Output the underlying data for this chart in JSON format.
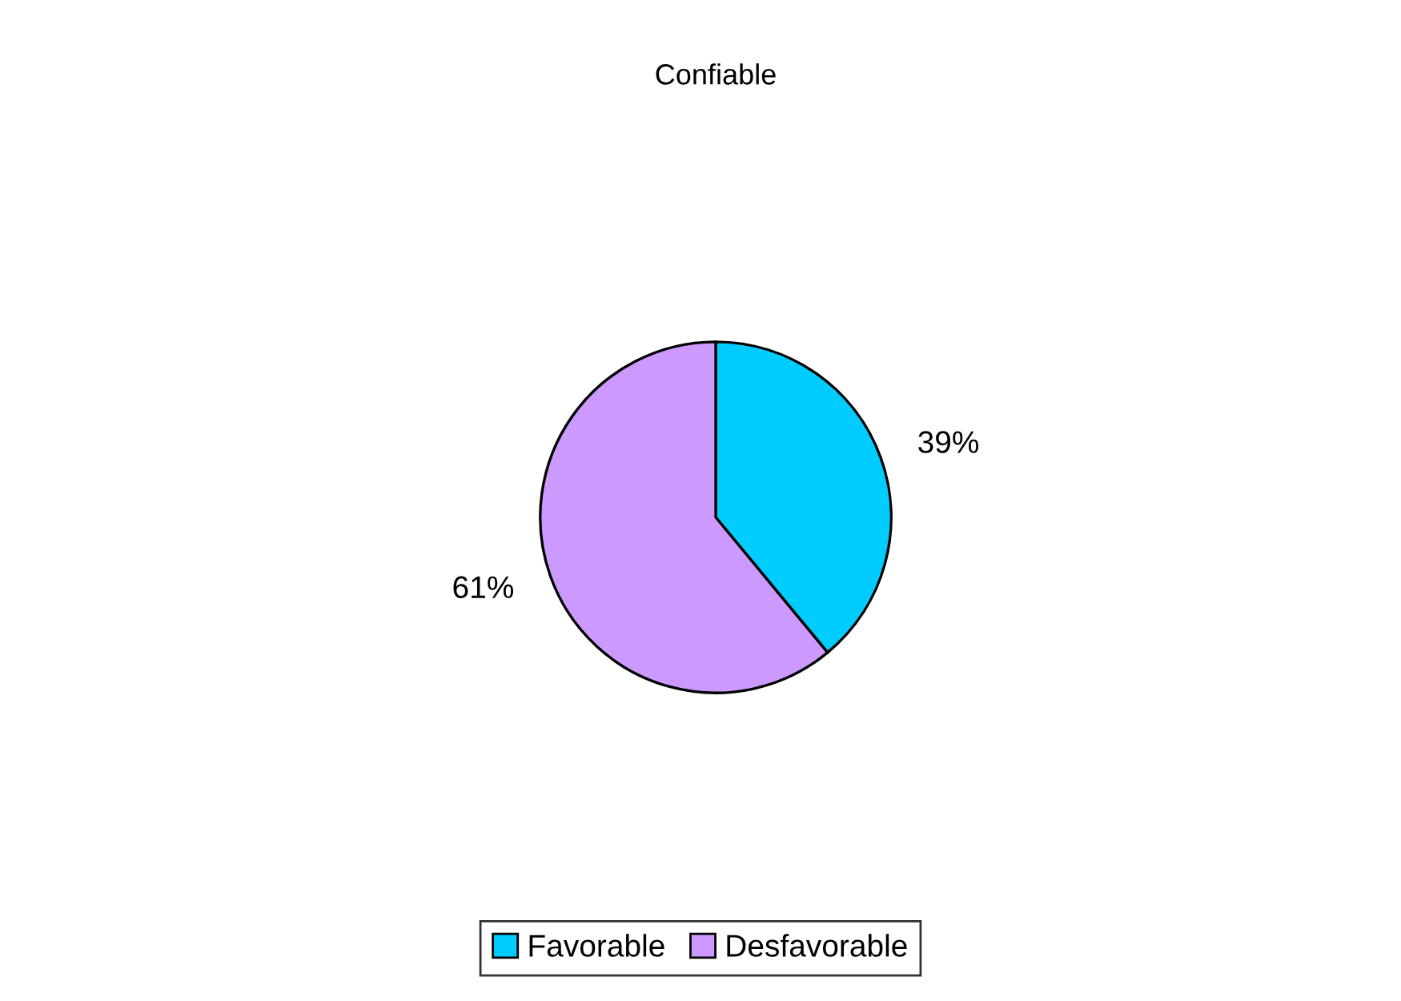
{
  "chart_data": {
    "type": "pie",
    "title": "Confiable",
    "categories": [
      "Favorable",
      "Desfavorable"
    ],
    "values": [
      39,
      61
    ],
    "value_labels": [
      "39%",
      "61%"
    ],
    "colors": [
      "#00ccff",
      "#cc99ff"
    ],
    "legend": "bottom"
  }
}
